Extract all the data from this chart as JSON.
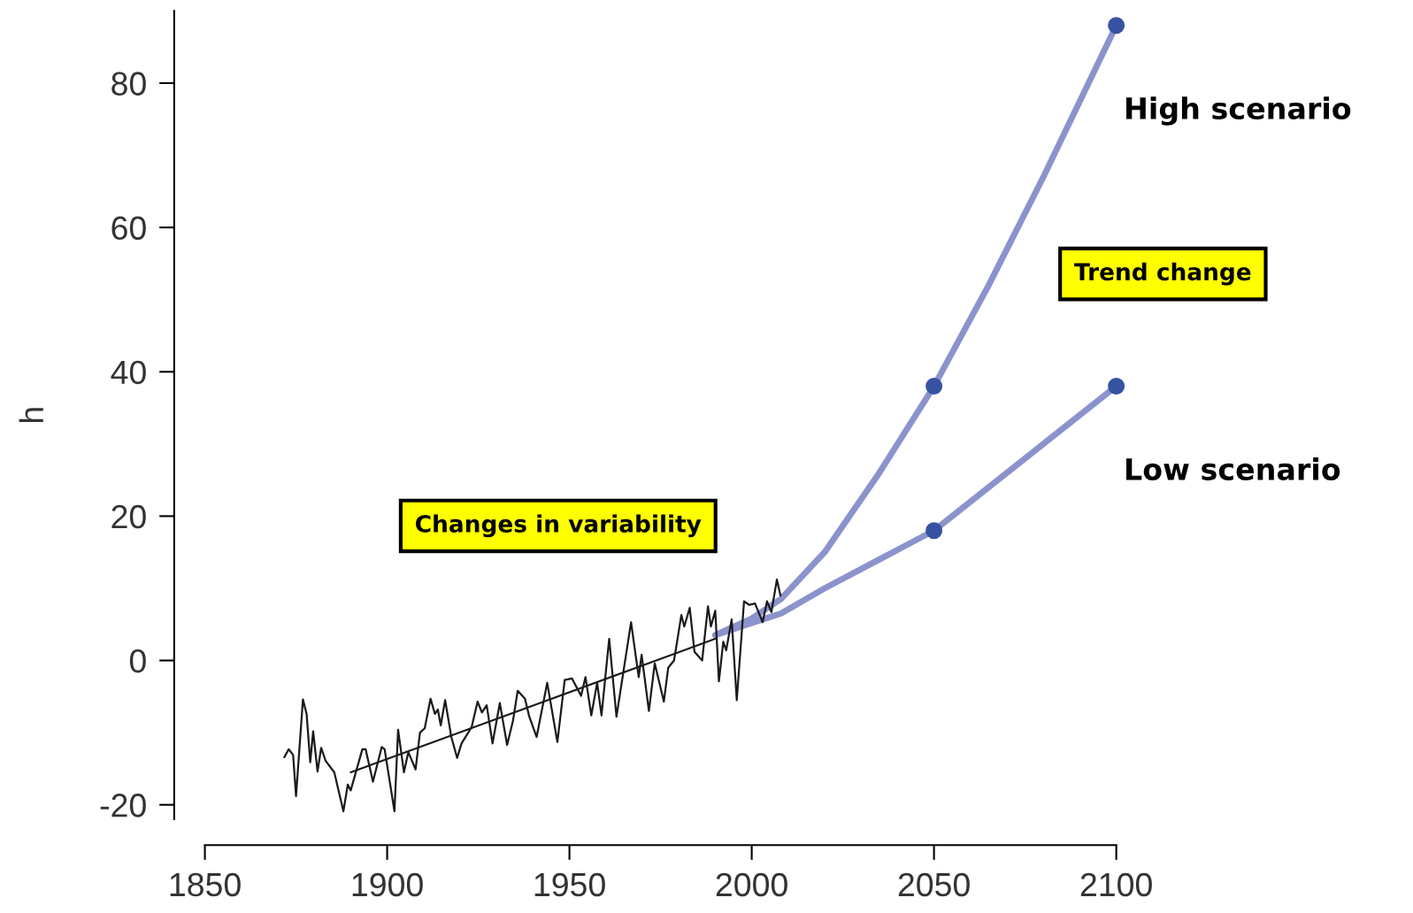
{
  "chart_data": {
    "type": "line",
    "ylabel": "h",
    "xlim": [
      1850,
      2100
    ],
    "xticks": [
      1850,
      1900,
      1950,
      2000,
      2050,
      2100
    ],
    "ylim": [
      -22,
      90
    ],
    "yticks": [
      -20,
      0,
      20,
      40,
      60,
      80
    ],
    "grid": false,
    "legend": false,
    "marker": "none",
    "line_style": "solid",
    "annotations": [
      "Changes in variability",
      "Trend change"
    ],
    "series": [
      {
        "color": "#1a1a1a",
        "x": [
          1871.8,
          1873.0,
          1874.2,
          1875.0,
          1876.9,
          1877.9,
          1878.9,
          1879.7,
          1880.9,
          1881.9,
          1883.1,
          1885.5,
          1888.0,
          1889.2,
          1890.0,
          1893.2,
          1894.1,
          1896.1,
          1898.5,
          1899.3,
          1902.0,
          1903.0,
          1904.6,
          1905.8,
          1907.8,
          1909.0,
          1910.3,
          1911.9,
          1913.1,
          1913.9,
          1914.7,
          1915.9,
          1917.6,
          1919.2,
          1920.4,
          1923.2,
          1924.8,
          1926.0,
          1927.3,
          1928.9,
          1930.9,
          1932.9,
          1934.5,
          1935.8,
          1937.8,
          1939.0,
          1941.0,
          1943.9,
          1946.7,
          1948.7,
          1950.7,
          1953.2,
          1954.4,
          1956.0,
          1957.6,
          1958.8,
          1960.9,
          1962.9,
          1966.9,
          1969.0,
          1969.8,
          1971.8,
          1973.4,
          1975.9,
          1977.1,
          1978.7,
          1980.7,
          1981.5,
          1983.0,
          1984.3,
          1986.4,
          1988.0,
          1988.8,
          1990.0,
          1991.0,
          1992.2,
          1993.0,
          1994.5,
          1995.9,
          1997.9,
          1999.3,
          2000.9,
          2003.0,
          2004.2,
          2005.4,
          2006.9,
          2007.9
        ],
        "values": [
          -13.4,
          -12.3,
          -13.1,
          -18.8,
          -5.4,
          -7.4,
          -14.1,
          -9.8,
          -15.4,
          -12.1,
          -13.9,
          -15.5,
          -20.9,
          -17.2,
          -18.0,
          -12.3,
          -12.3,
          -16.8,
          -12.0,
          -12.3,
          -20.9,
          -9.6,
          -15.5,
          -12.7,
          -15.1,
          -10.0,
          -9.4,
          -5.3,
          -7.4,
          -6.8,
          -9.0,
          -5.5,
          -10.6,
          -13.5,
          -11.5,
          -9.2,
          -5.7,
          -7.2,
          -6.2,
          -11.5,
          -5.9,
          -11.7,
          -8.4,
          -4.2,
          -5.3,
          -7.8,
          -10.6,
          -3.1,
          -11.3,
          -2.7,
          -2.5,
          -4.9,
          -2.3,
          -7.6,
          -3.1,
          -7.6,
          3.0,
          -7.8,
          5.3,
          -2.3,
          0.8,
          -7.0,
          -0.4,
          -5.7,
          -1.0,
          0.0,
          6.3,
          4.7,
          7.3,
          1.2,
          0.0,
          7.5,
          4.7,
          6.9,
          -2.9,
          2.6,
          1.4,
          5.7,
          -5.5,
          8.2,
          7.7,
          7.9,
          5.3,
          8.2,
          6.7,
          11.2,
          9.0
        ]
      },
      {
        "color": "#1a1a1a",
        "x": [
          1890,
          1990
        ],
        "values": [
          -15.5,
          3.0
        ]
      },
      {
        "name": "High scenario",
        "color": "#8a93cc",
        "x": [
          1990,
          2000,
          2008,
          2020,
          2035,
          2050,
          2065,
          2080,
          2100
        ],
        "values": [
          3.5,
          5.8,
          8.5,
          15,
          26,
          38,
          52,
          67,
          88
        ]
      },
      {
        "name": "Low scenario",
        "color": "#8a93cc",
        "x": [
          1990,
          2000,
          2008,
          2020,
          2035,
          2050,
          2065,
          2080,
          2100
        ],
        "values": [
          3.5,
          5.2,
          6.5,
          10,
          14,
          18,
          24,
          30,
          38
        ]
      },
      {
        "type": "scatter",
        "marker": "circle",
        "color": "#3653a3",
        "x": [
          2050,
          2100,
          2050,
          2100
        ],
        "values": [
          38,
          88,
          18,
          38
        ]
      }
    ]
  }
}
